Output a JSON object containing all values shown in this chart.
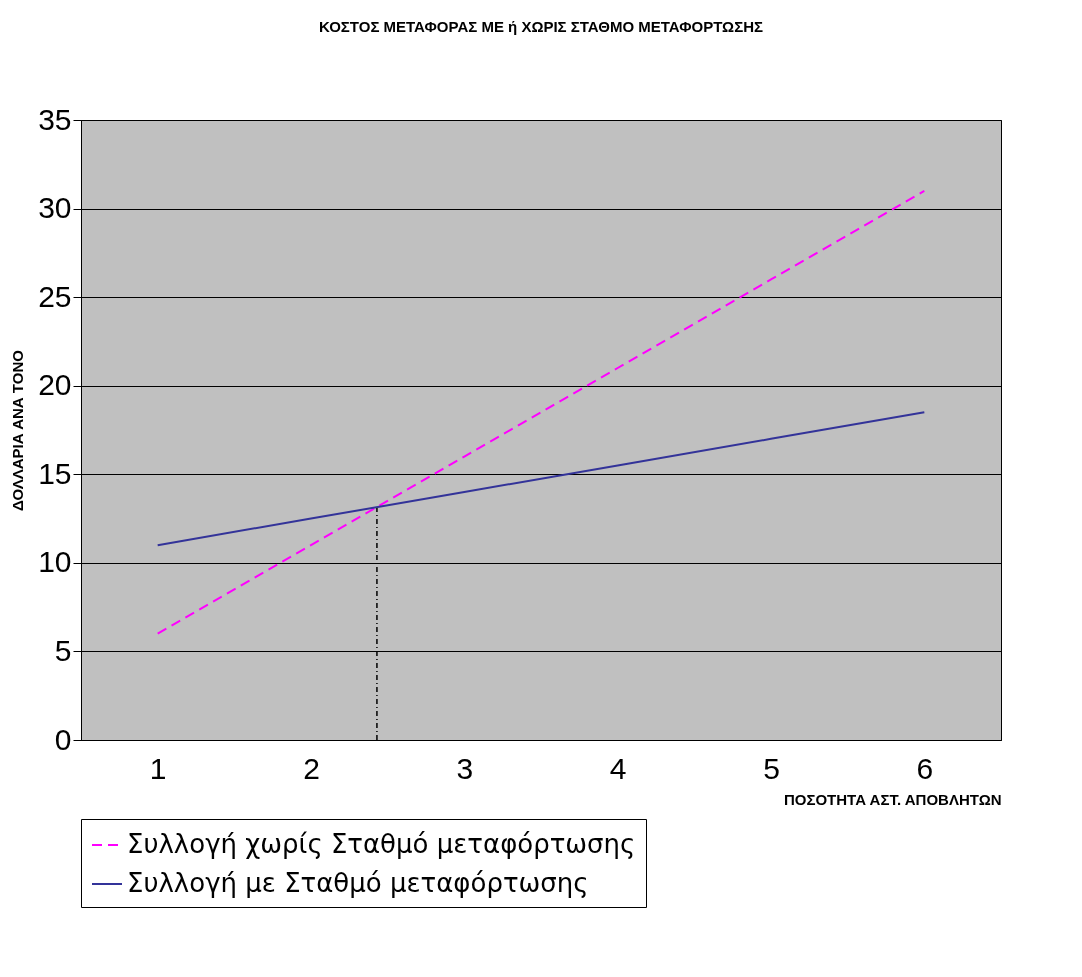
{
  "chart_data": {
    "type": "line",
    "title": "ΚΟΣΤΟΣ ΜΕΤΑΦΟΡΑΣ ΜΕ ή ΧΩΡΙΣ ΣΤΑΘΜΟ ΜΕΤΑΦΟΡΤΩΣΗΣ",
    "xlabel": "ΠΟΣΟΤΗΤΑ ΑΣΤ. ΑΠΟΒΛΗΤΩΝ",
    "ylabel": "ΔΟΛΛΑΡΙΑ ΑΝΑ ΤΟΝΟ",
    "x": [
      1,
      2,
      3,
      4,
      5,
      6
    ],
    "xlim": [
      0.5,
      6.5
    ],
    "xticks": [
      1,
      2,
      3,
      4,
      5,
      6
    ],
    "ylim": [
      0,
      35
    ],
    "yticks": [
      0,
      5,
      10,
      15,
      20,
      25,
      30,
      35
    ],
    "grid": "y",
    "legend": "bottom left",
    "marker": "none",
    "series": [
      {
        "name": "Συλλογή χωρίς Σταθμό μεταφόρτωσης",
        "color": "#ff00ff",
        "line_style": "dashed",
        "values": [
          6,
          11,
          16,
          21,
          26,
          31
        ]
      },
      {
        "name": "Συλλογή με Σταθμό μεταφόρτωσης",
        "color": "#333399",
        "line_style": "solid",
        "values": [
          11,
          12.5,
          14,
          15.5,
          17,
          18.5
        ]
      },
      {
        "color": "#000000",
        "line_style": "dotted",
        "x": [
          2.43,
          2.43
        ],
        "values": [
          0,
          13.1
        ]
      }
    ]
  }
}
